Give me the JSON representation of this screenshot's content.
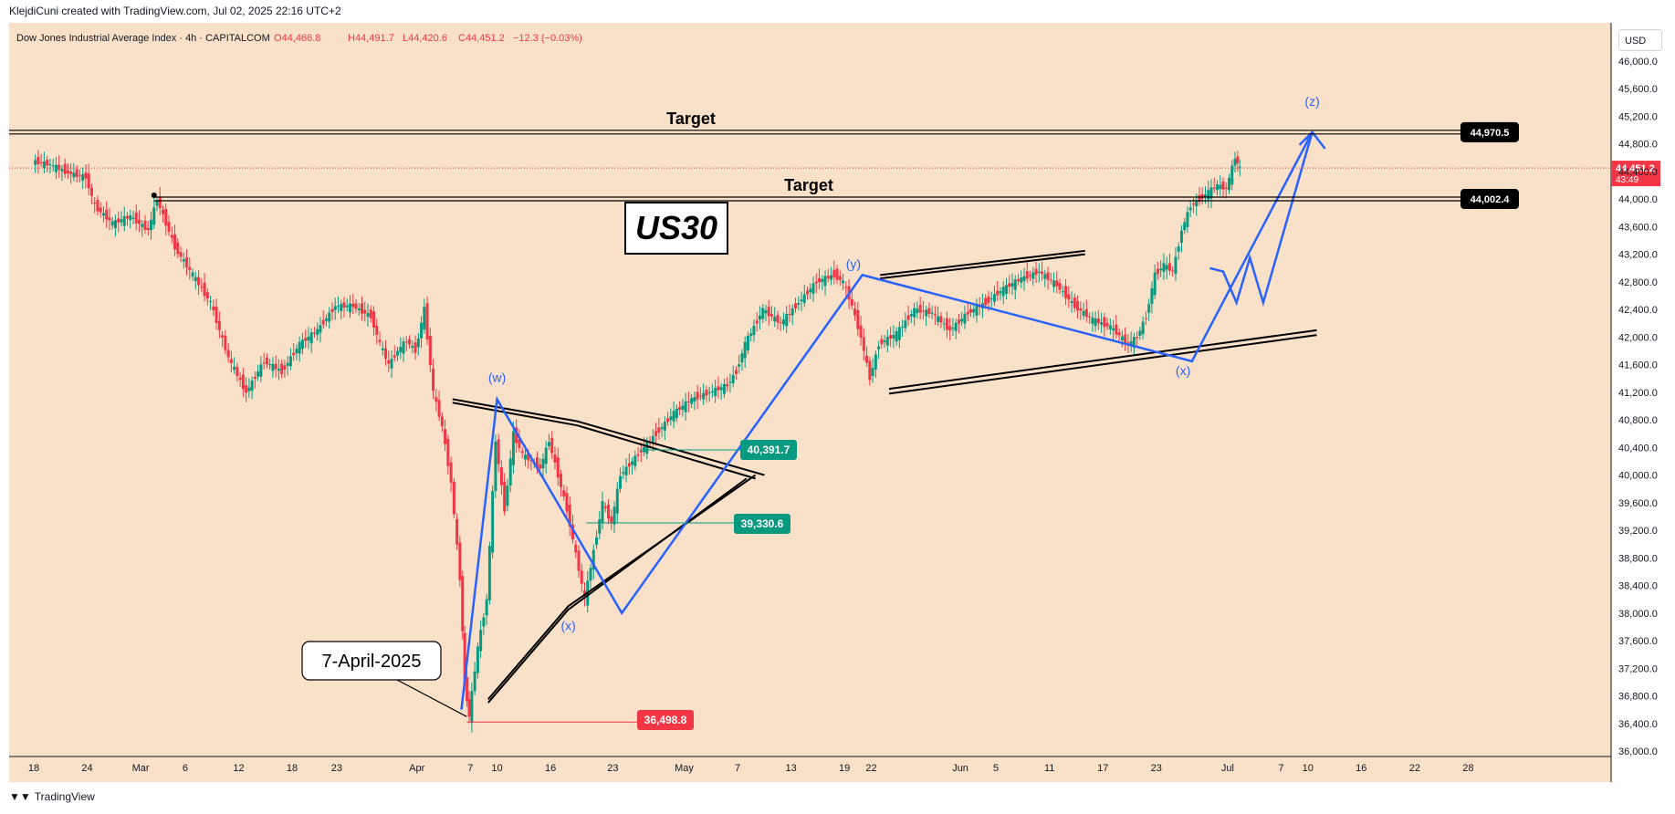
{
  "header": {
    "credit": "KlejdiCuni created with TradingView.com, Jul 02, 2025 22:16 UTC+2",
    "symbol_line": "Dow Jones Industrial Average Index · 4h · CAPITALCOM",
    "ohlc": {
      "o": "O44,466.8",
      "h": "H44,491.7",
      "l": "L44,420.6",
      "c": "C44,451.2",
      "chg": "−12.3 (−0.03%)"
    }
  },
  "footer": {
    "brand": "TradingView"
  },
  "currency": "USD",
  "colors": {
    "background": "#f9e1c9",
    "up": "#089981",
    "down": "#f23645",
    "wave": "#2962ff",
    "line": "#000000"
  },
  "chart_data": {
    "type": "line",
    "title": "",
    "instrument": "US30",
    "timeframe": "4h",
    "ylim": [
      36000,
      46000
    ],
    "y_ticks": [
      "46,000.0",
      "45,600.0",
      "45,200.0",
      "44,800.0",
      "44,400.0",
      "44,000.0",
      "43,600.0",
      "43,200.0",
      "42,800.0",
      "42,400.0",
      "42,000.0",
      "41,600.0",
      "41,200.0",
      "40,800.0",
      "40,400.0",
      "40,000.0",
      "39,600.0",
      "39,200.0",
      "38,800.0",
      "38,400.0",
      "38,000.0",
      "37,600.0",
      "37,200.0",
      "36,800.0",
      "36,400.0",
      "36,000.0"
    ],
    "x_ticks": [
      {
        "label": "18",
        "t": 0
      },
      {
        "label": "24",
        "t": 6
      },
      {
        "label": "Mar",
        "t": 12
      },
      {
        "label": "6",
        "t": 17
      },
      {
        "label": "12",
        "t": 23
      },
      {
        "label": "18",
        "t": 29
      },
      {
        "label": "23",
        "t": 34
      },
      {
        "label": "Apr",
        "t": 43
      },
      {
        "label": "7",
        "t": 49
      },
      {
        "label": "10",
        "t": 52
      },
      {
        "label": "16",
        "t": 58
      },
      {
        "label": "23",
        "t": 65
      },
      {
        "label": "May",
        "t": 73
      },
      {
        "label": "7",
        "t": 79
      },
      {
        "label": "13",
        "t": 85
      },
      {
        "label": "19",
        "t": 91
      },
      {
        "label": "22",
        "t": 94
      },
      {
        "label": "Jun",
        "t": 104
      },
      {
        "label": "5",
        "t": 108
      },
      {
        "label": "11",
        "t": 114
      },
      {
        "label": "17",
        "t": 120
      },
      {
        "label": "23",
        "t": 126
      },
      {
        "label": "Jul",
        "t": 134
      },
      {
        "label": "7",
        "t": 140
      },
      {
        "label": "10",
        "t": 143
      },
      {
        "label": "16",
        "t": 149
      },
      {
        "label": "22",
        "t": 155
      },
      {
        "label": "28",
        "t": 161
      }
    ],
    "price_series": {
      "name": "",
      "t": [
        0,
        2,
        4,
        6,
        7,
        9,
        11,
        13,
        14,
        16,
        18,
        20,
        22,
        24,
        26,
        28,
        30,
        32,
        34,
        36,
        38,
        39,
        40,
        41,
        42,
        43,
        44,
        45,
        46,
        47,
        48,
        48.5,
        49,
        50,
        51,
        52,
        53,
        54,
        55,
        56,
        57,
        58,
        60,
        62,
        64,
        65,
        66,
        68,
        70,
        72,
        74,
        76,
        78,
        79,
        80,
        82,
        84,
        86,
        88,
        90,
        91,
        92,
        93,
        94,
        95,
        97,
        99,
        101,
        103,
        105,
        107,
        109,
        111,
        113,
        115,
        117,
        119,
        121,
        123,
        124,
        125,
        126,
        127,
        128,
        129,
        130,
        131,
        132,
        133,
        134,
        135,
        135.5
      ],
      "y": [
        44550,
        44500,
        44380,
        44320,
        43900,
        43650,
        43750,
        43550,
        44000,
        43300,
        42900,
        42500,
        41700,
        41200,
        41650,
        41500,
        41900,
        42100,
        42450,
        42450,
        42300,
        41900,
        41600,
        41800,
        41950,
        41800,
        42400,
        41200,
        40700,
        39900,
        38500,
        37000,
        36500,
        37500,
        38200,
        40500,
        39500,
        40600,
        40300,
        40200,
        40100,
        40500,
        39500,
        38200,
        39600,
        39300,
        40000,
        40300,
        40600,
        40900,
        41100,
        41200,
        41300,
        41500,
        41900,
        42400,
        42200,
        42500,
        42800,
        42900,
        42800,
        42450,
        42000,
        41400,
        41900,
        42050,
        42400,
        42350,
        42100,
        42350,
        42500,
        42700,
        42850,
        42950,
        42750,
        42450,
        42250,
        42150,
        41900,
        42000,
        42300,
        42900,
        43050,
        42950,
        43550,
        43900,
        44000,
        44100,
        44200,
        44150,
        44600,
        44451
      ]
    },
    "annotations": [
      {
        "type": "hline",
        "price": 44970.5,
        "label": "Target",
        "tag": "44,970.5"
      },
      {
        "type": "hline",
        "price": 44002.4,
        "label": "Target",
        "tag": "44,002.4"
      },
      {
        "type": "text_box",
        "text": "US30"
      },
      {
        "type": "callout",
        "text": "7-April-2025"
      },
      {
        "type": "price_tag",
        "text": "36,498.8",
        "color": "#f23645"
      },
      {
        "type": "price_tag",
        "text": "39,330.6",
        "color": "#089981"
      },
      {
        "type": "price_tag",
        "text": "40,391.7",
        "color": "#089981"
      },
      {
        "type": "last_price",
        "text": "44,451.2",
        "countdown": "43:49"
      }
    ],
    "wave_labels": [
      {
        "label": "(w)",
        "t": 52,
        "p": 41350
      },
      {
        "label": "(x)",
        "t": 60,
        "p": 37750
      },
      {
        "label": "(y)",
        "t": 92,
        "p": 43000
      },
      {
        "label": "(x)",
        "t": 129,
        "p": 41450
      },
      {
        "label": "(z)",
        "t": 143.5,
        "p": 45350
      }
    ],
    "wave_path": {
      "t": [
        48,
        52,
        66,
        93,
        130,
        143.5
      ],
      "p": [
        36600,
        41100,
        38000,
        42900,
        41650,
        44970
      ]
    },
    "projection_path": {
      "t": [
        143.5,
        138,
        136.5,
        135,
        133.5,
        132
      ],
      "p": [
        44970,
        42500,
        43150,
        42500,
        42950,
        43000
      ]
    },
    "triangle_lines": [
      {
        "t": [
          47,
          61,
          82
        ],
        "p": [
          41100,
          40780,
          40000
        ]
      },
      {
        "t": [
          47,
          61,
          81
        ],
        "p": [
          41050,
          40720,
          39950
        ]
      },
      {
        "t": [
          51,
          60,
          81
        ],
        "p": [
          36750,
          38100,
          40000
        ]
      },
      {
        "t": [
          51,
          60,
          80
        ],
        "p": [
          36700,
          38050,
          39950
        ]
      }
    ],
    "channel_lines": [
      {
        "t": [
          95,
          118
        ],
        "p": [
          42900,
          43250
        ]
      },
      {
        "t": [
          95,
          118
        ],
        "p": [
          42850,
          43200
        ]
      },
      {
        "t": [
          96,
          144
        ],
        "p": [
          41250,
          42100
        ]
      },
      {
        "t": [
          96,
          144
        ],
        "p": [
          41180,
          42030
        ]
      }
    ]
  }
}
